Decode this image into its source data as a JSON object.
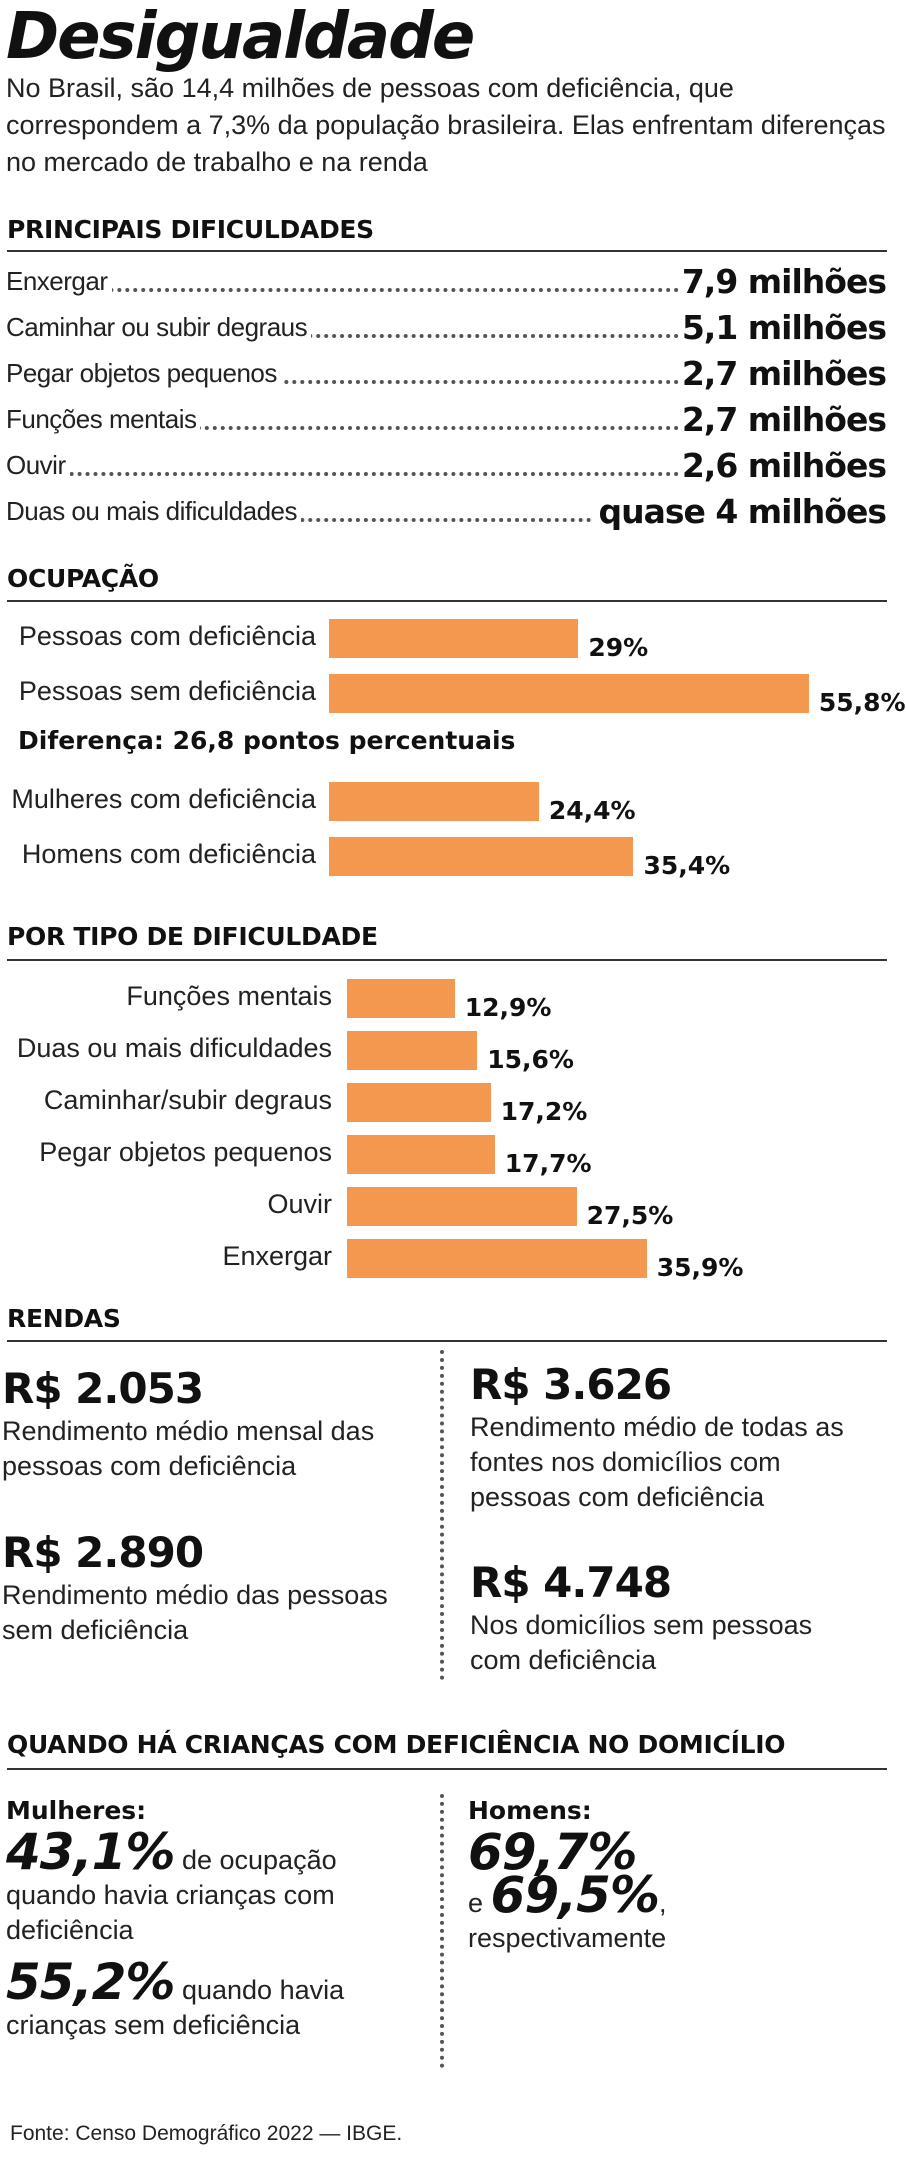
{
  "title": "Desigualdade",
  "intro": "No Brasil, são 14,4 milhões de pessoas com deficiência, que correspondem a 7,3% da população brasileira. Elas enfrentam diferenças no mercado de trabalho e na renda",
  "difficulties": {
    "title": "PRINCIPAIS DIFICULDADES",
    "items": [
      {
        "label": "Enxergar",
        "value": "7,9 milhões"
      },
      {
        "label": "Caminhar ou subir degraus",
        "value": "5,1 milhões"
      },
      {
        "label": "Pegar objetos pequenos",
        "value": "2,7 milhões"
      },
      {
        "label": "Funções mentais",
        "value": "2,7 milhões"
      },
      {
        "label": "Ouvir",
        "value": "2,6 milhões"
      },
      {
        "label": "Duas ou mais dificuldades",
        "value": "quase 4 milhões"
      }
    ]
  },
  "occupation": {
    "title": "OCUPAÇÃO",
    "difference_note": "Diferença: 26,8 pontos percentuais"
  },
  "by_type": {
    "title": "POR TIPO DE DIFICULDADE"
  },
  "chart_data": [
    {
      "type": "bar",
      "title": "OCUPAÇÃO",
      "orientation": "horizontal",
      "categories": [
        "Pessoas com deficiência",
        "Pessoas sem deficiência",
        "Mulheres com deficiência",
        "Homens com deficiência"
      ],
      "values": [
        29,
        55.8,
        24.4,
        35.4
      ],
      "value_labels": [
        "29%",
        "55,8%",
        "24,4%",
        "35,4%"
      ],
      "color": "#f4974f"
    },
    {
      "type": "bar",
      "title": "POR TIPO DE DIFICULDADE",
      "orientation": "horizontal",
      "categories": [
        "Funções mentais",
        "Duas ou mais dificuldades",
        "Caminhar/subir degraus",
        "Pegar objetos pequenos",
        "Ouvir",
        "Enxergar"
      ],
      "values": [
        12.9,
        15.6,
        17.2,
        17.7,
        27.5,
        35.9
      ],
      "value_labels": [
        "12,9%",
        "15,6%",
        "17,2%",
        "17,7%",
        "27,5%",
        "35,9%"
      ],
      "color": "#f4974f"
    }
  ],
  "incomes": {
    "title": "RENDAS",
    "left": [
      {
        "value": "R$ 2.053",
        "desc": "Rendimento médio mensal das pessoas com deficiência"
      },
      {
        "value": "R$ 2.890",
        "desc": "Rendimento médio das pessoas sem deficiência"
      }
    ],
    "right": [
      {
        "value": "R$ 3.626",
        "desc": "Rendimento médio de todas as fontes nos domicílios com pessoas com deficiência"
      },
      {
        "value": "R$ 4.748",
        "desc": "Nos domicílios sem pessoas com deficiência"
      }
    ]
  },
  "children": {
    "title": "QUANDO HÁ CRIANÇAS COM DEFICIÊNCIA NO DOMICÍLIO",
    "women": {
      "heading": "Mulheres:",
      "pct1": "43,1%",
      "text1a": " de ocupação",
      "text1b": "quando havia crianças com deficiência",
      "pct2": "55,2%",
      "text2a": " quando havia",
      "text2b": "crianças sem deficiência"
    },
    "men": {
      "heading": "Homens:",
      "pct1": "69,7%",
      "conj": "e ",
      "pct2": "69,5%",
      "comma": ",",
      "text": "respectivamente"
    }
  },
  "source": "Fonte: Censo Demográfico 2022 — IBGE."
}
